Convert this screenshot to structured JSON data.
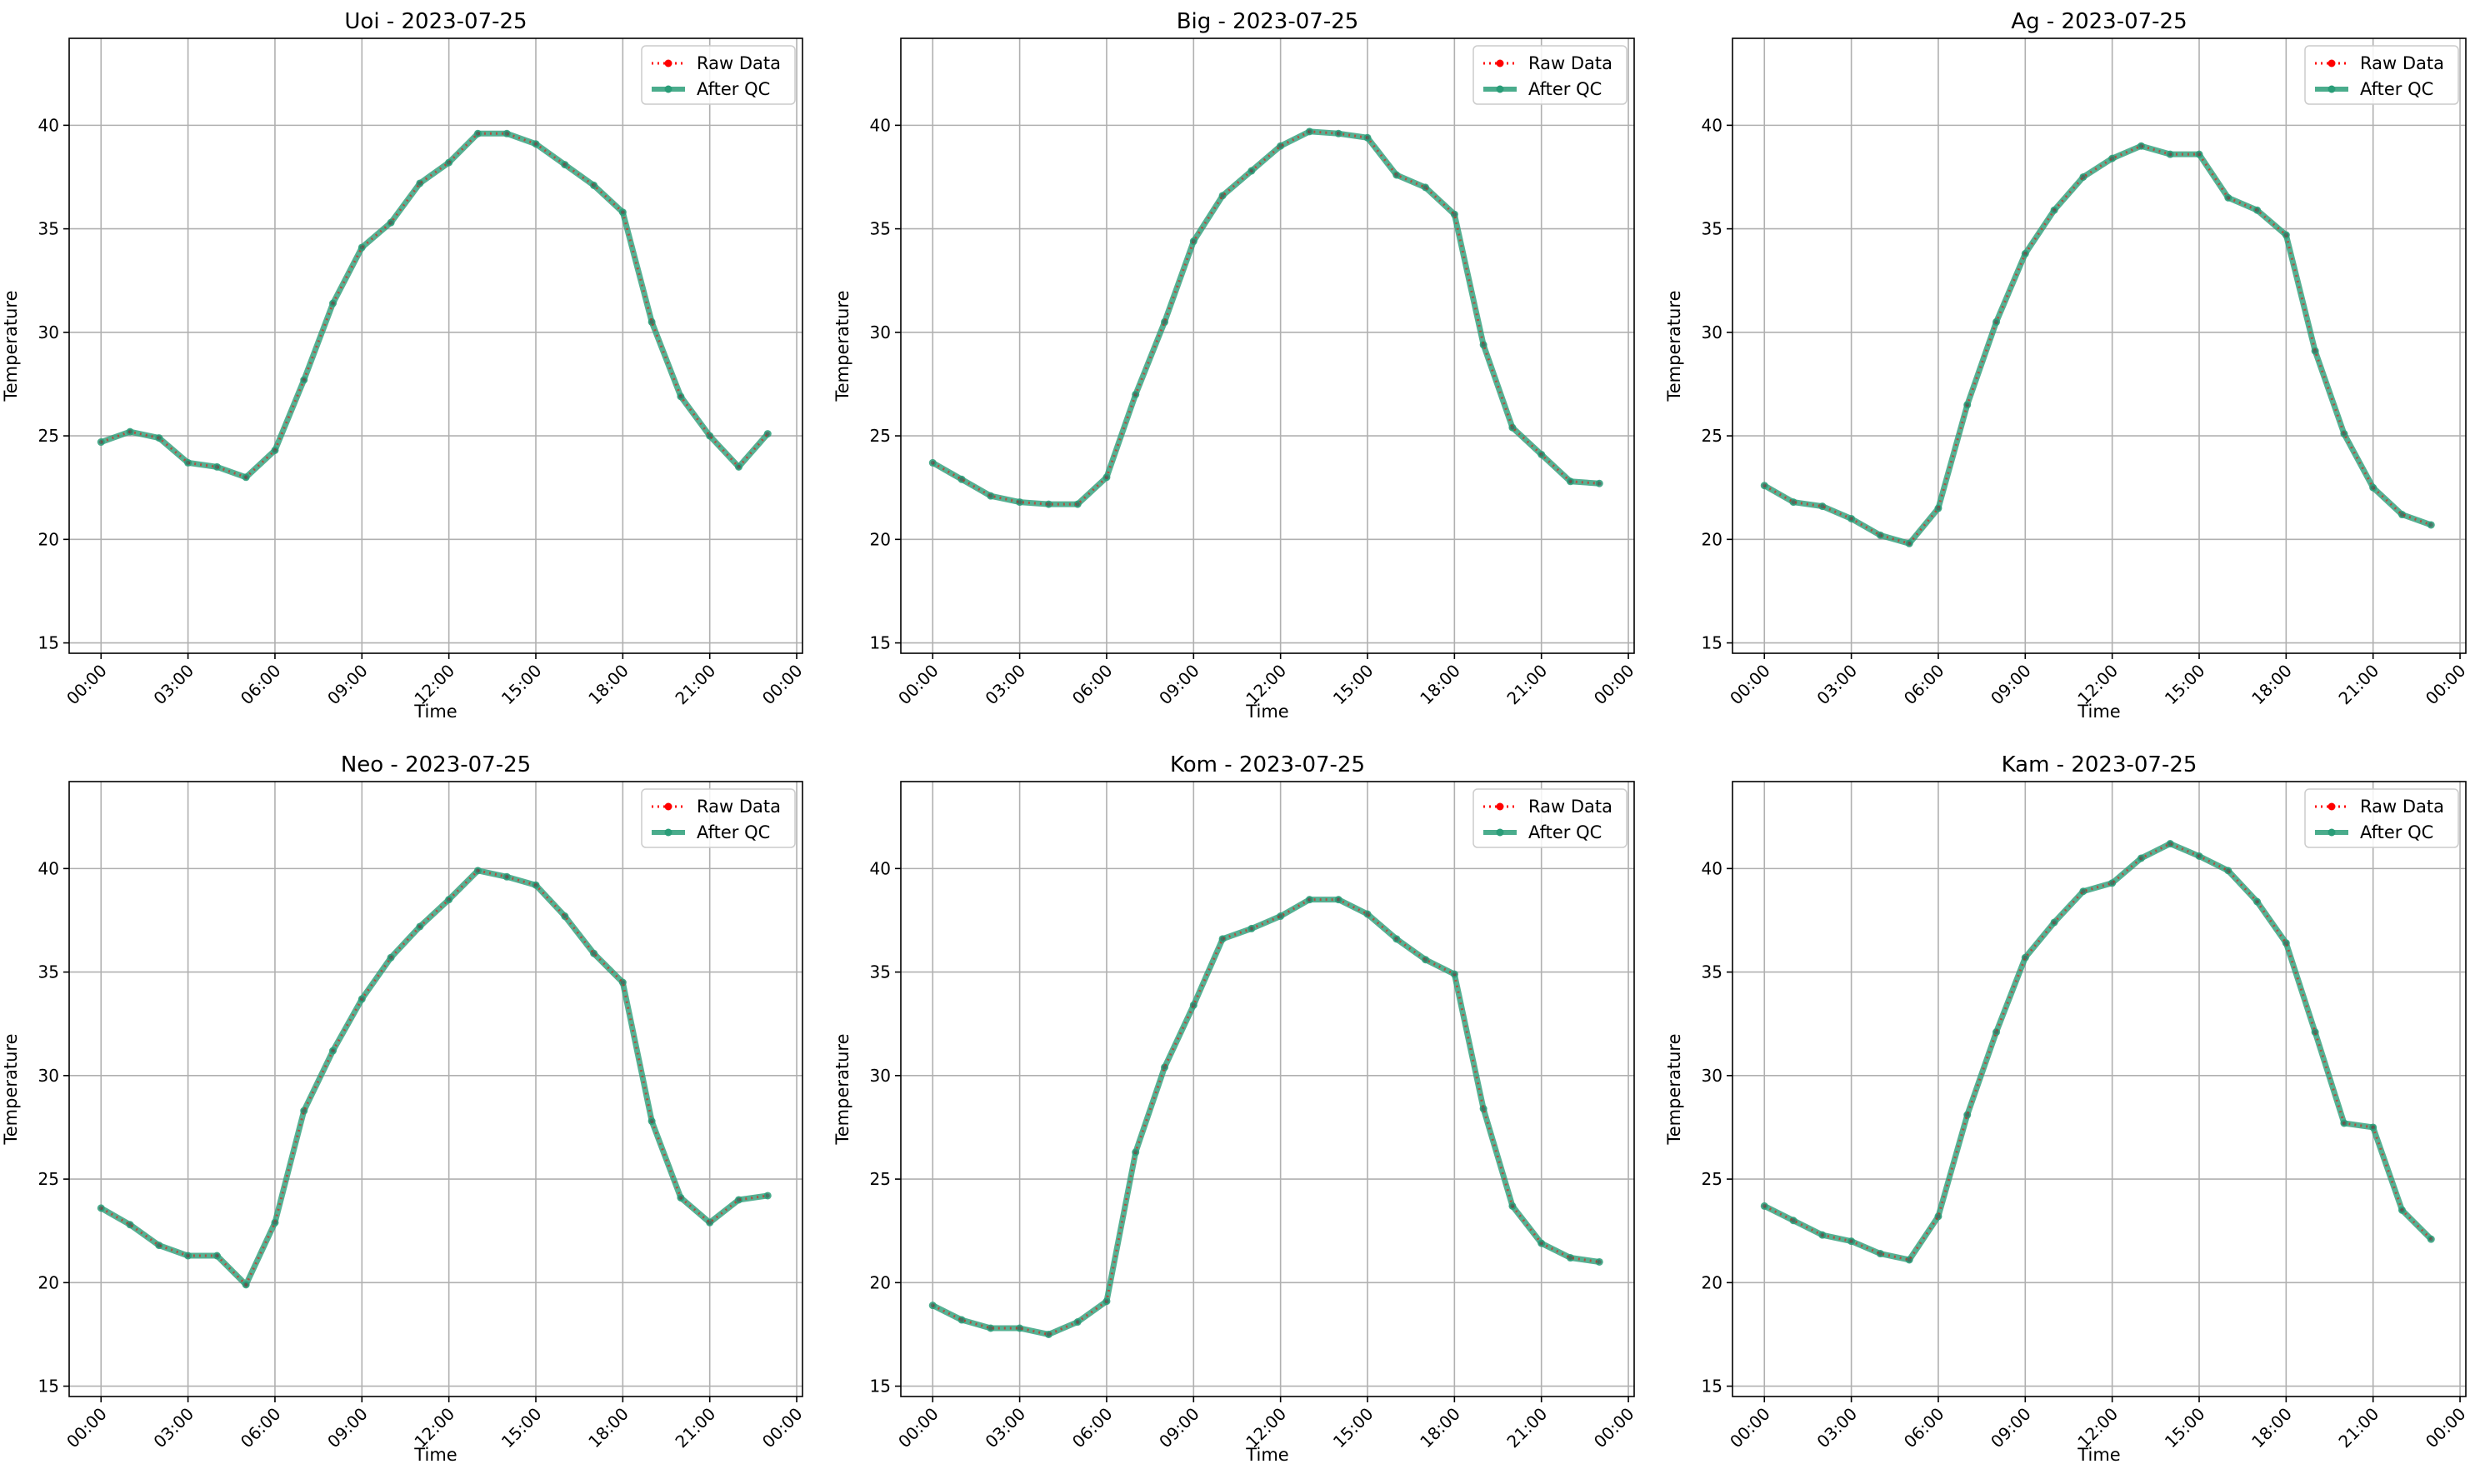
{
  "chart_data": [
    {
      "type": "line",
      "title": "Uoi - 2023-07-25",
      "xlabel": "Time",
      "ylabel": "Temperature",
      "x": [
        "00:00",
        "01:00",
        "02:00",
        "03:00",
        "04:00",
        "05:00",
        "06:00",
        "07:00",
        "08:00",
        "09:00",
        "10:00",
        "11:00",
        "12:00",
        "13:00",
        "14:00",
        "15:00",
        "16:00",
        "17:00",
        "18:00",
        "19:00",
        "20:00",
        "21:00",
        "22:00",
        "23:00"
      ],
      "xticks": [
        "00:00",
        "03:00",
        "06:00",
        "09:00",
        "12:00",
        "15:00",
        "18:00",
        "21:00",
        "00:00"
      ],
      "yticks": [
        15,
        20,
        25,
        30,
        35,
        40
      ],
      "ylim": [
        14.5,
        44.2
      ],
      "grid": true,
      "legend": "top-right",
      "series": [
        {
          "name": "Raw Data",
          "color": "#ff0000",
          "style": "dotted",
          "values": [
            24.7,
            25.2,
            24.9,
            23.7,
            23.5,
            23.0,
            24.3,
            27.7,
            31.4,
            34.1,
            35.3,
            37.2,
            38.2,
            39.6,
            39.6,
            39.1,
            38.1,
            37.1,
            35.8,
            30.5,
            26.9,
            25.0,
            23.5,
            25.1
          ]
        },
        {
          "name": "After QC",
          "color": "#2a9d78",
          "style": "solid",
          "values": [
            24.7,
            25.2,
            24.9,
            23.7,
            23.5,
            23.0,
            24.3,
            27.7,
            31.4,
            34.1,
            35.3,
            37.2,
            38.2,
            39.6,
            39.6,
            39.1,
            38.1,
            37.1,
            35.8,
            30.5,
            26.9,
            25.0,
            23.5,
            25.1
          ]
        }
      ]
    },
    {
      "type": "line",
      "title": "Big - 2023-07-25",
      "xlabel": "Time",
      "ylabel": "Temperature",
      "x": [
        "00:00",
        "01:00",
        "02:00",
        "03:00",
        "04:00",
        "05:00",
        "06:00",
        "07:00",
        "08:00",
        "09:00",
        "10:00",
        "11:00",
        "12:00",
        "13:00",
        "14:00",
        "15:00",
        "16:00",
        "17:00",
        "18:00",
        "19:00",
        "20:00",
        "21:00",
        "22:00",
        "23:00"
      ],
      "xticks": [
        "00:00",
        "03:00",
        "06:00",
        "09:00",
        "12:00",
        "15:00",
        "18:00",
        "21:00",
        "00:00"
      ],
      "yticks": [
        15,
        20,
        25,
        30,
        35,
        40
      ],
      "ylim": [
        14.5,
        44.2
      ],
      "grid": true,
      "legend": "top-right",
      "series": [
        {
          "name": "Raw Data",
          "color": "#ff0000",
          "style": "dotted",
          "values": [
            23.7,
            22.9,
            22.1,
            21.8,
            21.7,
            21.7,
            23.0,
            27.0,
            30.5,
            34.4,
            36.6,
            37.8,
            39.0,
            39.7,
            39.6,
            39.4,
            37.6,
            37.0,
            35.7,
            29.4,
            25.4,
            24.1,
            22.8,
            22.7
          ]
        },
        {
          "name": "After QC",
          "color": "#2a9d78",
          "style": "solid",
          "values": [
            23.7,
            22.9,
            22.1,
            21.8,
            21.7,
            21.7,
            23.0,
            27.0,
            30.5,
            34.4,
            36.6,
            37.8,
            39.0,
            39.7,
            39.6,
            39.4,
            37.6,
            37.0,
            35.7,
            29.4,
            25.4,
            24.1,
            22.8,
            22.7
          ]
        }
      ]
    },
    {
      "type": "line",
      "title": "Ag - 2023-07-25",
      "xlabel": "Time",
      "ylabel": "Temperature",
      "x": [
        "00:00",
        "01:00",
        "02:00",
        "03:00",
        "04:00",
        "05:00",
        "06:00",
        "07:00",
        "08:00",
        "09:00",
        "10:00",
        "11:00",
        "12:00",
        "13:00",
        "14:00",
        "15:00",
        "16:00",
        "17:00",
        "18:00",
        "19:00",
        "20:00",
        "21:00",
        "22:00",
        "23:00"
      ],
      "xticks": [
        "00:00",
        "03:00",
        "06:00",
        "09:00",
        "12:00",
        "15:00",
        "18:00",
        "21:00",
        "00:00"
      ],
      "yticks": [
        15,
        20,
        25,
        30,
        35,
        40
      ],
      "ylim": [
        14.5,
        44.2
      ],
      "grid": true,
      "legend": "top-right",
      "series": [
        {
          "name": "Raw Data",
          "color": "#ff0000",
          "style": "dotted",
          "values": [
            22.6,
            21.8,
            21.6,
            21.0,
            20.2,
            19.8,
            21.5,
            26.5,
            30.5,
            33.8,
            35.9,
            37.5,
            38.4,
            39.0,
            38.6,
            38.6,
            36.5,
            35.9,
            34.7,
            29.1,
            25.1,
            22.5,
            21.2,
            20.7
          ]
        },
        {
          "name": "After QC",
          "color": "#2a9d78",
          "style": "solid",
          "values": [
            22.6,
            21.8,
            21.6,
            21.0,
            20.2,
            19.8,
            21.5,
            26.5,
            30.5,
            33.8,
            35.9,
            37.5,
            38.4,
            39.0,
            38.6,
            38.6,
            36.5,
            35.9,
            34.7,
            29.1,
            25.1,
            22.5,
            21.2,
            20.7
          ]
        }
      ]
    },
    {
      "type": "line",
      "title": "Neo - 2023-07-25",
      "xlabel": "Time",
      "ylabel": "Temperature",
      "x": [
        "00:00",
        "01:00",
        "02:00",
        "03:00",
        "04:00",
        "05:00",
        "06:00",
        "07:00",
        "08:00",
        "09:00",
        "10:00",
        "11:00",
        "12:00",
        "13:00",
        "14:00",
        "15:00",
        "16:00",
        "17:00",
        "18:00",
        "19:00",
        "20:00",
        "21:00",
        "22:00",
        "23:00"
      ],
      "xticks": [
        "00:00",
        "03:00",
        "06:00",
        "09:00",
        "12:00",
        "15:00",
        "18:00",
        "21:00",
        "00:00"
      ],
      "yticks": [
        15,
        20,
        25,
        30,
        35,
        40
      ],
      "ylim": [
        14.5,
        44.2
      ],
      "grid": true,
      "legend": "top-right",
      "series": [
        {
          "name": "Raw Data",
          "color": "#ff0000",
          "style": "dotted",
          "values": [
            23.6,
            22.8,
            21.8,
            21.3,
            21.3,
            19.9,
            22.9,
            28.3,
            31.2,
            33.7,
            35.7,
            37.2,
            38.5,
            39.9,
            39.6,
            39.2,
            37.7,
            35.9,
            34.5,
            27.8,
            24.1,
            22.9,
            24.0,
            24.2
          ]
        },
        {
          "name": "After QC",
          "color": "#2a9d78",
          "style": "solid",
          "values": [
            23.6,
            22.8,
            21.8,
            21.3,
            21.3,
            19.9,
            22.9,
            28.3,
            31.2,
            33.7,
            35.7,
            37.2,
            38.5,
            39.9,
            39.6,
            39.2,
            37.7,
            35.9,
            34.5,
            27.8,
            24.1,
            22.9,
            24.0,
            24.2
          ]
        }
      ]
    },
    {
      "type": "line",
      "title": "Kom - 2023-07-25",
      "xlabel": "Time",
      "ylabel": "Temperature",
      "x": [
        "00:00",
        "01:00",
        "02:00",
        "03:00",
        "04:00",
        "05:00",
        "06:00",
        "07:00",
        "08:00",
        "09:00",
        "10:00",
        "11:00",
        "12:00",
        "13:00",
        "14:00",
        "15:00",
        "16:00",
        "17:00",
        "18:00",
        "19:00",
        "20:00",
        "21:00",
        "22:00",
        "23:00"
      ],
      "xticks": [
        "00:00",
        "03:00",
        "06:00",
        "09:00",
        "12:00",
        "15:00",
        "18:00",
        "21:00",
        "00:00"
      ],
      "yticks": [
        15,
        20,
        25,
        30,
        35,
        40
      ],
      "ylim": [
        14.5,
        44.2
      ],
      "grid": true,
      "legend": "top-right",
      "series": [
        {
          "name": "Raw Data",
          "color": "#ff0000",
          "style": "dotted",
          "values": [
            18.9,
            18.2,
            17.8,
            17.8,
            17.5,
            18.1,
            19.1,
            26.3,
            30.4,
            33.4,
            36.6,
            37.1,
            37.7,
            38.5,
            38.5,
            37.8,
            36.6,
            35.6,
            34.9,
            28.4,
            23.7,
            21.9,
            21.2,
            21.0
          ]
        },
        {
          "name": "After QC",
          "color": "#2a9d78",
          "style": "solid",
          "values": [
            18.9,
            18.2,
            17.8,
            17.8,
            17.5,
            18.1,
            19.1,
            26.3,
            30.4,
            33.4,
            36.6,
            37.1,
            37.7,
            38.5,
            38.5,
            37.8,
            36.6,
            35.6,
            34.9,
            28.4,
            23.7,
            21.9,
            21.2,
            21.0
          ]
        }
      ]
    },
    {
      "type": "line",
      "title": "Kam - 2023-07-25",
      "xlabel": "Time",
      "ylabel": "Temperature",
      "x": [
        "00:00",
        "01:00",
        "02:00",
        "03:00",
        "04:00",
        "05:00",
        "06:00",
        "07:00",
        "08:00",
        "09:00",
        "10:00",
        "11:00",
        "12:00",
        "13:00",
        "14:00",
        "15:00",
        "16:00",
        "17:00",
        "18:00",
        "19:00",
        "20:00",
        "21:00",
        "22:00",
        "23:00"
      ],
      "xticks": [
        "00:00",
        "03:00",
        "06:00",
        "09:00",
        "12:00",
        "15:00",
        "18:00",
        "21:00",
        "00:00"
      ],
      "yticks": [
        15,
        20,
        25,
        30,
        35,
        40
      ],
      "ylim": [
        14.5,
        44.2
      ],
      "grid": true,
      "legend": "top-right",
      "series": [
        {
          "name": "Raw Data",
          "color": "#ff0000",
          "style": "dotted",
          "values": [
            23.7,
            23.0,
            22.3,
            22.0,
            21.4,
            21.1,
            23.2,
            28.1,
            32.1,
            35.7,
            37.4,
            38.9,
            39.3,
            40.5,
            41.2,
            40.6,
            39.9,
            38.4,
            36.4,
            32.1,
            27.7,
            27.5,
            23.5,
            22.1
          ]
        },
        {
          "name": "After QC",
          "color": "#2a9d78",
          "style": "solid",
          "values": [
            23.7,
            23.0,
            22.3,
            22.0,
            21.4,
            21.1,
            23.2,
            28.1,
            32.1,
            35.7,
            37.4,
            38.9,
            39.3,
            40.5,
            41.2,
            40.6,
            39.9,
            38.4,
            36.4,
            32.1,
            27.7,
            27.5,
            23.5,
            22.1
          ]
        }
      ]
    }
  ]
}
